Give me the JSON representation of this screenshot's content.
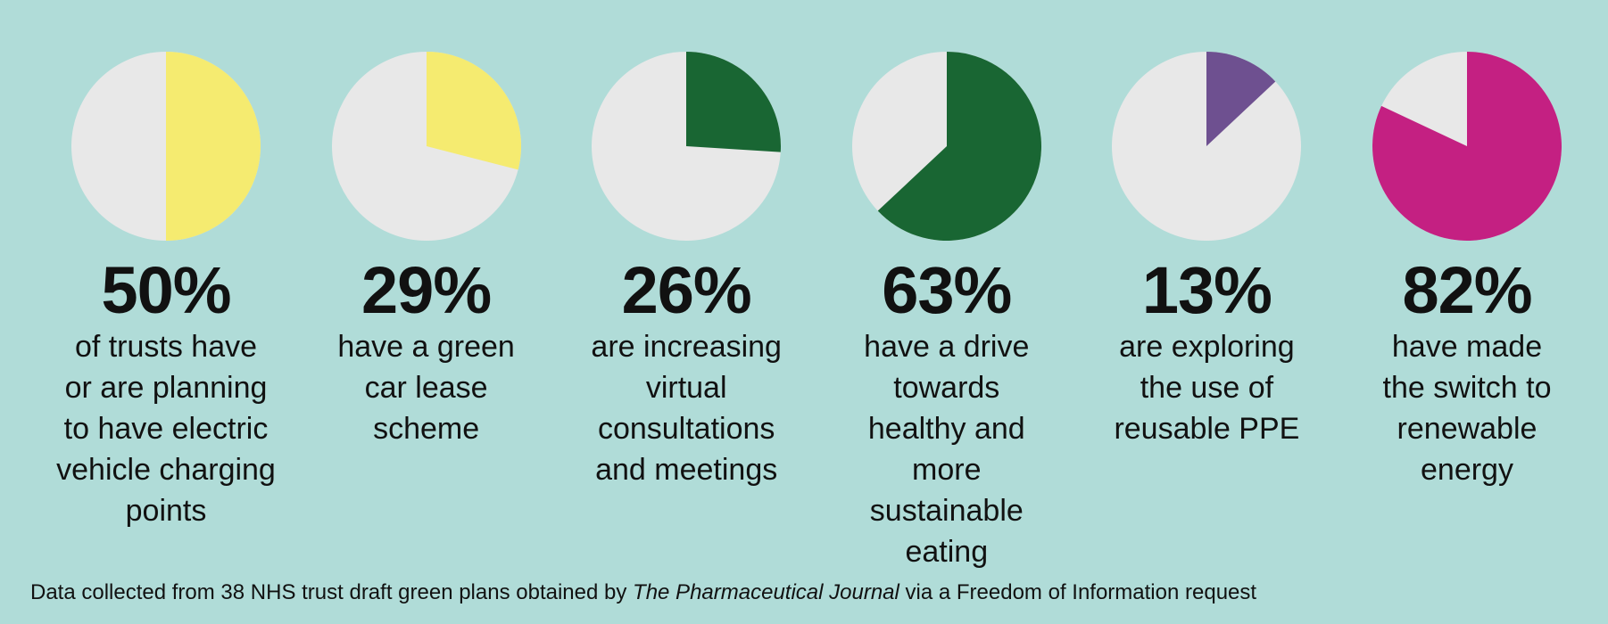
{
  "chart_data": {
    "type": "pie",
    "colors": {
      "background": "#b0dcd8",
      "remainder": "#e8e8e8"
    },
    "items": [
      {
        "value": 50,
        "label": "50%",
        "text": "of trusts have\nor are planning\nto have electric\nvehicle charging\npoints",
        "color": "#f5eb70"
      },
      {
        "value": 29,
        "label": "29%",
        "text": "have a green\ncar lease\nscheme",
        "color": "#f5eb70"
      },
      {
        "value": 26,
        "label": "26%",
        "text": "are increasing\nvirtual\nconsultations\nand meetings",
        "color": "#196633"
      },
      {
        "value": 63,
        "label": "63%",
        "text": "have a drive\ntowards\nhealthy and\nmore\nsustainable\neating",
        "color": "#196633"
      },
      {
        "value": 13,
        "label": "13%",
        "text": "are exploring\nthe use of\nreusable PPE",
        "color": "#6e5090"
      },
      {
        "value": 82,
        "label": "82%",
        "text": "have made\nthe switch to\nrenewable\nenergy",
        "color": "#c42082"
      }
    ]
  },
  "footnote": {
    "prefix": "Data collected from 38 NHS trust draft green plans obtained by ",
    "source": "The Pharmaceutical Journal",
    "suffix": " via a Freedom of Information request"
  }
}
